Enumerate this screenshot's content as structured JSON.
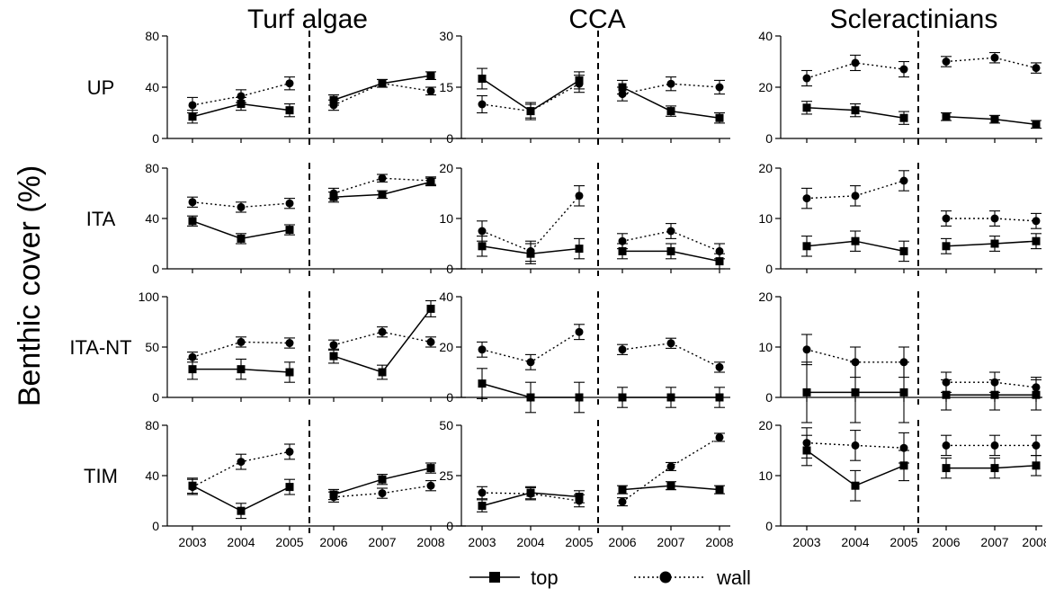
{
  "y_axis_title": "Benthic cover (%)",
  "legend": {
    "top": "top",
    "wall": "wall"
  },
  "styles": {
    "top": {
      "line": "solid",
      "marker": "square",
      "color": "#000000"
    },
    "wall": {
      "line": "dotted",
      "marker": "circle",
      "color": "#000000"
    }
  },
  "chart_data": {
    "type": "line",
    "x": [
      "2003",
      "2004",
      "2005",
      "2006",
      "2007",
      "2008"
    ],
    "period_break_between": [
      "2005",
      "2006"
    ],
    "columns": [
      "Turf algae",
      "CCA",
      "Scleractinians"
    ],
    "rows": [
      "UP",
      "ITA",
      "ITA-NT",
      "TIM"
    ],
    "panels": [
      {
        "row": "UP",
        "col": "Turf algae",
        "ylim": [
          0,
          80
        ],
        "yticks": [
          0,
          40,
          80
        ],
        "series": [
          {
            "name": "top",
            "values": [
              17,
              27,
              22,
              30,
              43,
              49
            ],
            "err": [
              5,
              5,
              5,
              4,
              3,
              3
            ]
          },
          {
            "name": "wall",
            "values": [
              26,
              33,
              43,
              26,
              43,
              37
            ],
            "err": [
              6,
              5,
              5,
              4,
              3,
              3
            ]
          }
        ]
      },
      {
        "row": "UP",
        "col": "CCA",
        "ylim": [
          0,
          30
        ],
        "yticks": [
          0,
          15,
          30
        ],
        "series": [
          {
            "name": "top",
            "values": [
              17.5,
              8,
              17,
              15,
              8,
              6
            ],
            "err": [
              3,
              2.5,
              2.5,
              2,
              1.5,
              1.5
            ]
          },
          {
            "name": "wall",
            "values": [
              10,
              8,
              16,
              13,
              16,
              15
            ],
            "err": [
              2.5,
              2,
              2.5,
              2,
              2,
              2
            ]
          }
        ]
      },
      {
        "row": "UP",
        "col": "Scleractinians",
        "ylim": [
          0,
          40
        ],
        "yticks": [
          0,
          20,
          40
        ],
        "series": [
          {
            "name": "top",
            "values": [
              12,
              11,
              8,
              8.5,
              7.5,
              5.5
            ],
            "err": [
              2.5,
              2.5,
              2.5,
              1.5,
              1.5,
              1.5
            ]
          },
          {
            "name": "wall",
            "values": [
              23.5,
              29.5,
              27,
              30,
              31.5,
              27.5
            ],
            "err": [
              3,
              3,
              3,
              2,
              2,
              2
            ]
          }
        ]
      },
      {
        "row": "ITA",
        "col": "Turf algae",
        "ylim": [
          0,
          80
        ],
        "yticks": [
          0,
          40,
          80
        ],
        "series": [
          {
            "name": "top",
            "values": [
              38,
              24,
              31,
              57,
              59,
              69
            ],
            "err": [
              4,
              4,
              4,
              4,
              3,
              3
            ]
          },
          {
            "name": "wall",
            "values": [
              53,
              49,
              52,
              60,
              72,
              70
            ],
            "err": [
              4,
              4,
              4,
              4,
              3,
              3
            ]
          }
        ]
      },
      {
        "row": "ITA",
        "col": "CCA",
        "ylim": [
          0,
          20
        ],
        "yticks": [
          0,
          10,
          20
        ],
        "series": [
          {
            "name": "top",
            "values": [
              4.5,
              3,
              4,
              3.5,
              3.5,
              1.5
            ],
            "err": [
              2,
              2,
              2,
              1.5,
              1.5,
              1.5
            ]
          },
          {
            "name": "wall",
            "values": [
              7.5,
              3.5,
              14.5,
              5.5,
              7.5,
              3.5
            ],
            "err": [
              2,
              2,
              2,
              1.5,
              1.5,
              1.5
            ]
          }
        ]
      },
      {
        "row": "ITA",
        "col": "Scleractinians",
        "ylim": [
          0,
          20
        ],
        "yticks": [
          0,
          10,
          20
        ],
        "series": [
          {
            "name": "top",
            "values": [
              4.5,
              5.5,
              3.5,
              4.5,
              5,
              5.5
            ],
            "err": [
              2,
              2,
              2,
              1.5,
              1.5,
              1.5
            ]
          },
          {
            "name": "wall",
            "values": [
              14,
              14.5,
              17.5,
              10,
              10,
              9.5
            ],
            "err": [
              2,
              2,
              2,
              1.5,
              1.5,
              1.5
            ]
          }
        ]
      },
      {
        "row": "ITA-NT",
        "col": "Turf algae",
        "ylim": [
          0,
          100
        ],
        "yticks": [
          0,
          50,
          100
        ],
        "series": [
          {
            "name": "top",
            "values": [
              28,
              28,
              25,
              41,
              25,
              88
            ],
            "err": [
              10,
              10,
              10,
              7,
              7,
              8
            ]
          },
          {
            "name": "wall",
            "values": [
              40,
              55,
              54,
              52,
              65,
              55
            ],
            "err": [
              5,
              5,
              5,
              5,
              5,
              5
            ]
          }
        ]
      },
      {
        "row": "ITA-NT",
        "col": "CCA",
        "ylim": [
          0,
          40
        ],
        "yticks": [
          0,
          20,
          40
        ],
        "series": [
          {
            "name": "top",
            "values": [
              5.5,
              0,
              0,
              0,
              0,
              0
            ],
            "err": [
              6,
              6,
              6,
              4,
              4,
              4
            ]
          },
          {
            "name": "wall",
            "values": [
              19,
              14,
              26,
              19,
              21.5,
              12
            ],
            "err": [
              3,
              3,
              3,
              2,
              2,
              2
            ]
          }
        ]
      },
      {
        "row": "ITA-NT",
        "col": "Scleractinians",
        "ylim": [
          0,
          20
        ],
        "yticks": [
          0,
          10,
          20
        ],
        "series": [
          {
            "name": "top",
            "values": [
              1,
              1,
              1,
              0.5,
              0.5,
              0.5
            ],
            "err": [
              6,
              6,
              6,
              3,
              3,
              3
            ]
          },
          {
            "name": "wall",
            "values": [
              9.5,
              7,
              7,
              3,
              3,
              2
            ],
            "err": [
              3,
              3,
              3,
              2,
              2,
              2
            ]
          }
        ]
      },
      {
        "row": "TIM",
        "col": "Turf algae",
        "ylim": [
          0,
          80
        ],
        "yticks": [
          0,
          40,
          80
        ],
        "series": [
          {
            "name": "top",
            "values": [
              32,
              12,
              31,
              25,
              37,
              46
            ],
            "err": [
              6,
              6,
              6,
              4,
              4,
              4
            ]
          },
          {
            "name": "wall",
            "values": [
              31,
              51,
              59,
              23,
              26,
              32
            ],
            "err": [
              6,
              6,
              6,
              4,
              4,
              4
            ]
          }
        ]
      },
      {
        "row": "TIM",
        "col": "CCA",
        "ylim": [
          0,
          50
        ],
        "yticks": [
          0,
          25,
          50
        ],
        "series": [
          {
            "name": "top",
            "values": [
              10,
              16.5,
              14.5,
              18,
              20,
              18
            ],
            "err": [
              3,
              3,
              3,
              2,
              2,
              2
            ]
          },
          {
            "name": "wall",
            "values": [
              16.5,
              16,
              12.5,
              12,
              29.5,
              44
            ],
            "err": [
              3,
              3,
              3,
              2,
              2,
              2
            ]
          }
        ]
      },
      {
        "row": "TIM",
        "col": "Scleractinians",
        "ylim": [
          0,
          20
        ],
        "yticks": [
          0,
          10,
          20
        ],
        "series": [
          {
            "name": "top",
            "values": [
              15,
              8,
              12,
              11.5,
              11.5,
              12
            ],
            "err": [
              3,
              3,
              3,
              2,
              2,
              2
            ]
          },
          {
            "name": "wall",
            "values": [
              16.5,
              16,
              15.5,
              16,
              16,
              16
            ],
            "err": [
              3,
              3,
              3,
              2,
              2,
              2
            ]
          }
        ]
      }
    ]
  }
}
